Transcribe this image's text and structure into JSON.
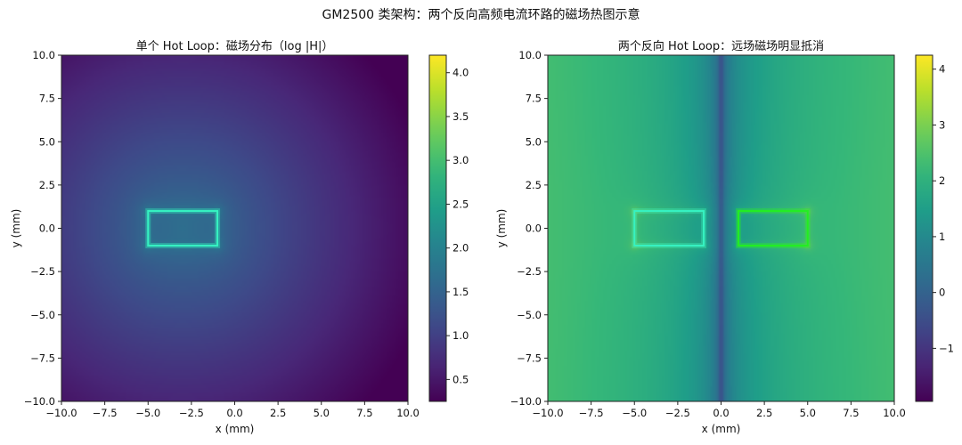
{
  "figure_title": "GM2500 类架构：两个反向高频电流环路的磁场热图示意",
  "chart_data": [
    {
      "type": "heatmap",
      "title": "单个 Hot Loop：磁场分布（log |H|）",
      "xlabel": "x (mm)",
      "ylabel": "y (mm)",
      "xlim": [
        -10,
        10
      ],
      "ylim": [
        -10,
        10
      ],
      "x_ticks": [
        -10,
        -7.5,
        -5,
        -2.5,
        0,
        2.5,
        5,
        7.5,
        10
      ],
      "y_ticks": [
        -10,
        -7.5,
        -5,
        -2.5,
        0,
        2.5,
        5,
        7.5,
        10
      ],
      "x_tick_labels": [
        "−10.0",
        "−7.5",
        "−5.0",
        "−2.5",
        "0.0",
        "2.5",
        "5.0",
        "7.5",
        "10.0"
      ],
      "y_tick_labels": [
        "−10.0",
        "−7.5",
        "−5.0",
        "−2.5",
        "0.0",
        "2.5",
        "5.0",
        "7.5",
        "10.0"
      ],
      "colormap": "viridis",
      "colorbar_range": [
        0.25,
        4.2
      ],
      "colorbar_ticks": [
        0.5,
        1.0,
        1.5,
        2.0,
        2.5,
        3.0,
        3.5,
        4.0
      ],
      "colorbar_tick_labels": [
        "0.5",
        "1.0",
        "1.5",
        "2.0",
        "2.5",
        "3.0",
        "3.5",
        "4.0"
      ],
      "loops": [
        {
          "x": [
            -5,
            -1
          ],
          "y": [
            -1,
            1
          ],
          "color": "#36f2c2"
        }
      ]
    },
    {
      "type": "heatmap",
      "title": "两个反向 Hot Loop：远场磁场明显抵消",
      "xlabel": "x (mm)",
      "ylabel": "y (mm)",
      "xlim": [
        -10,
        10
      ],
      "ylim": [
        -10,
        10
      ],
      "x_ticks": [
        -10,
        -7.5,
        -5,
        -2.5,
        0,
        2.5,
        5,
        7.5,
        10
      ],
      "y_ticks": [
        -10,
        -7.5,
        -5,
        -2.5,
        0,
        2.5,
        5,
        7.5,
        10
      ],
      "x_tick_labels": [
        "−10.0",
        "−7.5",
        "−5.0",
        "−2.5",
        "0.0",
        "2.5",
        "5.0",
        "7.5",
        "10.0"
      ],
      "y_tick_labels": [
        "−10.0",
        "−7.5",
        "−5.0",
        "−2.5",
        "0.0",
        "2.5",
        "5.0",
        "7.5",
        "10.0"
      ],
      "colormap": "viridis",
      "colorbar_range": [
        -1.95,
        4.25
      ],
      "colorbar_ticks": [
        -1,
        0,
        1,
        2,
        3,
        4
      ],
      "colorbar_tick_labels": [
        "−1",
        "0",
        "1",
        "2",
        "3",
        "4"
      ],
      "loops": [
        {
          "x": [
            -5,
            -1
          ],
          "y": [
            -1,
            1
          ],
          "color": "#36f2c2"
        },
        {
          "x": [
            1,
            5
          ],
          "y": [
            -1,
            1
          ],
          "color": "#22ee22"
        }
      ]
    }
  ]
}
